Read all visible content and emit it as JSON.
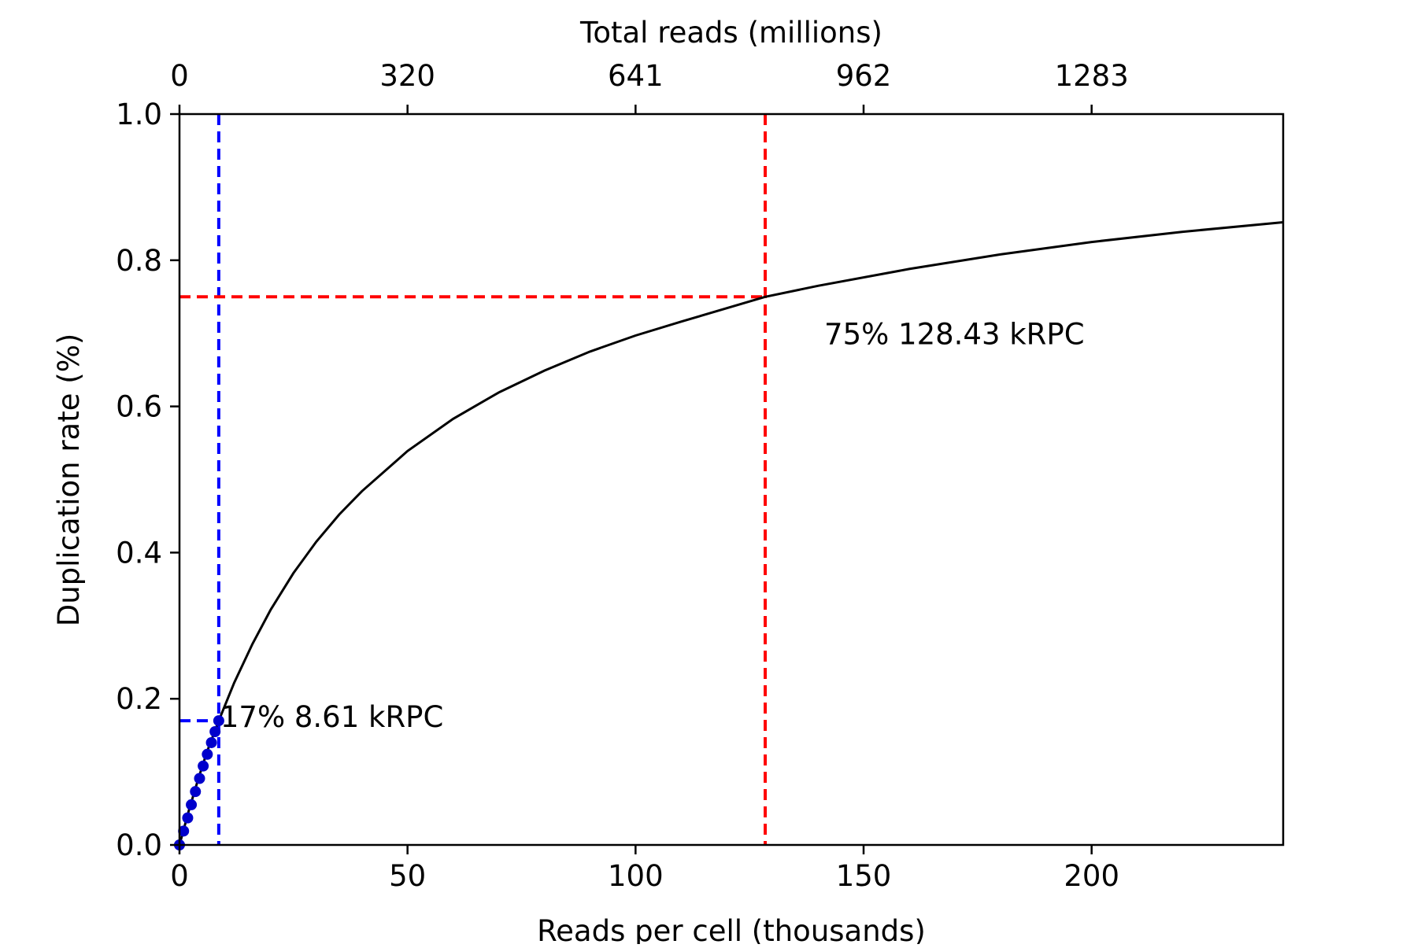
{
  "chart_data": {
    "type": "line",
    "title": "",
    "xlabel": "Reads per cell (thousands)",
    "ylabel": "Duplication rate (%)",
    "x2label": "Total reads (millions)",
    "xlim": [
      0,
      242
    ],
    "ylim": [
      0,
      1.0
    ],
    "xticks": [
      0,
      50,
      100,
      150,
      200
    ],
    "yticks": [
      0.0,
      0.2,
      0.4,
      0.6,
      0.8,
      1.0
    ],
    "yticklabels": [
      "0.0",
      "0.2",
      "0.4",
      "0.6",
      "0.8",
      "1.0"
    ],
    "x2ticks": [
      0,
      50,
      100,
      150,
      200
    ],
    "x2ticklabels": [
      "0",
      "320",
      "641",
      "962",
      "1283"
    ],
    "grid": false,
    "series": [
      {
        "role": "fitted_curve",
        "color": "#000000",
        "x": [
          0,
          2,
          4,
          6,
          8.61,
          12,
          16,
          20,
          25,
          30,
          35,
          40,
          50,
          60,
          70,
          80,
          90,
          100,
          110,
          128.43,
          140,
          160,
          180,
          200,
          220,
          242
        ],
        "y": [
          0,
          0.046,
          0.088,
          0.127,
          0.17,
          0.222,
          0.275,
          0.322,
          0.372,
          0.415,
          0.452,
          0.484,
          0.539,
          0.583,
          0.619,
          0.649,
          0.675,
          0.697,
          0.716,
          0.75,
          0.765,
          0.788,
          0.808,
          0.825,
          0.839,
          0.852
        ]
      },
      {
        "role": "observed_points",
        "color": "#0000cc",
        "x": [
          0.0,
          0.9,
          1.8,
          2.6,
          3.5,
          4.4,
          5.2,
          6.1,
          7.0,
          7.8,
          8.61
        ],
        "y": [
          0.0,
          0.019,
          0.037,
          0.055,
          0.073,
          0.091,
          0.108,
          0.124,
          0.14,
          0.155,
          0.17
        ]
      }
    ],
    "annotations": [
      {
        "label": "17% 8.61 kRPC",
        "x": 8.61,
        "y": 0.17,
        "color": "#0000ff"
      },
      {
        "label": "75% 128.43 kRPC",
        "x": 128.43,
        "y": 0.75,
        "color": "#ff0000"
      }
    ]
  }
}
